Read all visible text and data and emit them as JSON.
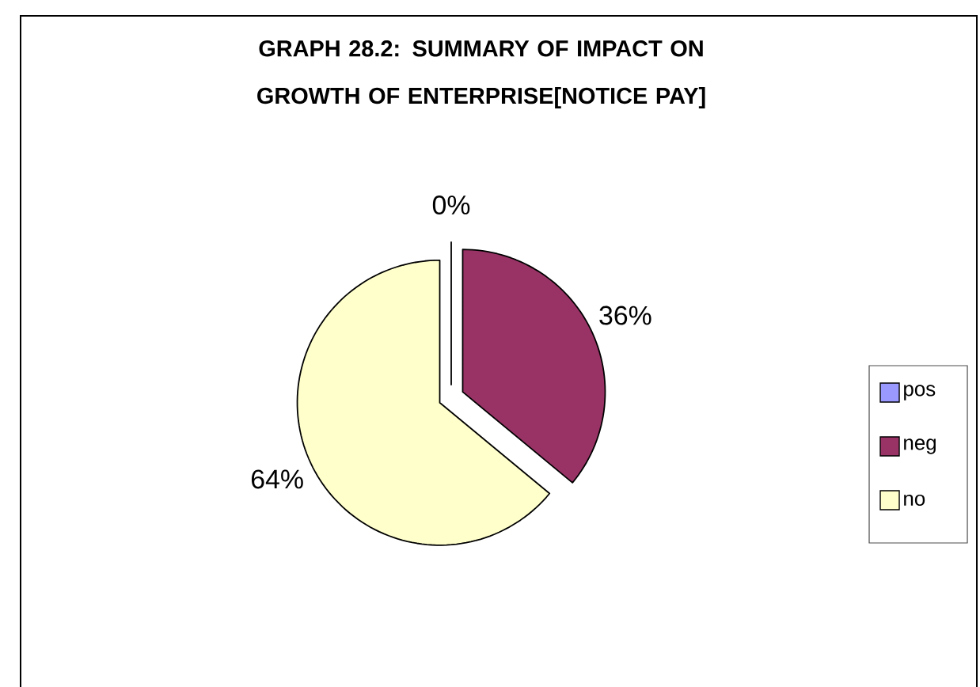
{
  "chart_data": {
    "type": "pie",
    "title": "GRAPH 28.2:  SUMMARY OF IMPACT ON GROWTH OF ENTERPRISE[NOTICE PAY]",
    "categories": [
      "pos",
      "neg",
      "no"
    ],
    "values": [
      0,
      36,
      64
    ],
    "colors": [
      "#9999ff",
      "#993366",
      "#ffffcc"
    ],
    "value_labels": [
      "0%",
      "36%",
      "64%"
    ],
    "legend": "right"
  }
}
